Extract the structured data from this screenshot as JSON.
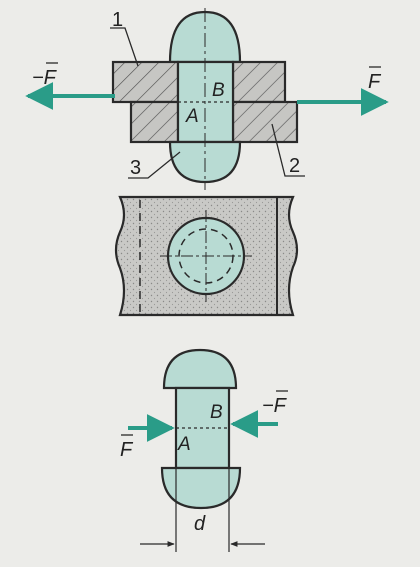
{
  "colors": {
    "paper": "#ecece9",
    "plate": "#c6c6c3",
    "rivet": "#b8dbd3",
    "arrow": "#2a9c88",
    "line": "#2a2a2a"
  },
  "labels": {
    "part_1": "1",
    "part_2": "2",
    "part_3": "3",
    "force_left": "−F",
    "force_right": "F",
    "point_a": "A",
    "point_b": "B",
    "rivet_force_left": "F",
    "rivet_force_right": "−F",
    "point_a_rivet": "A",
    "point_b_rivet": "B",
    "diameter": "d"
  },
  "icons": {
    "force_arrow": "arrow-icon",
    "vector_bar": "vector-overbar-icon"
  }
}
